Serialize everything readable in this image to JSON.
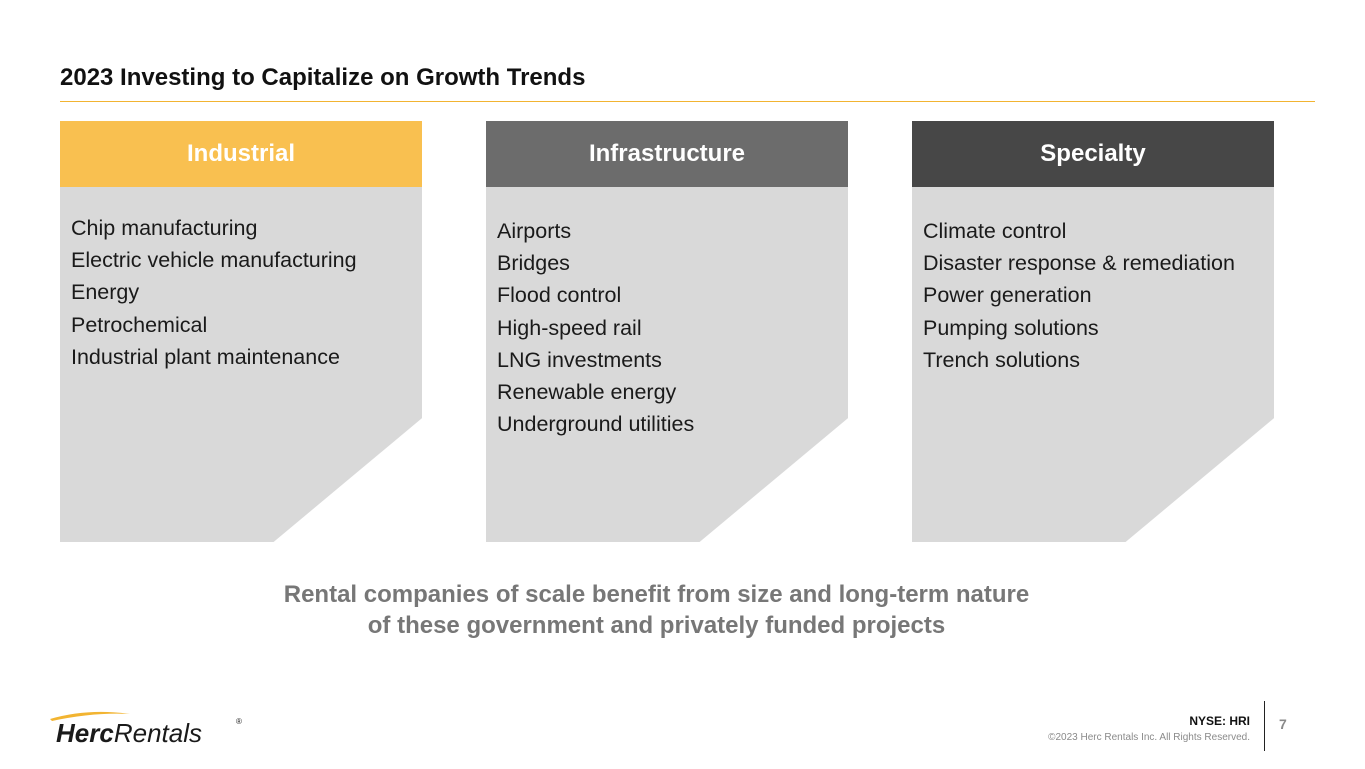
{
  "slide": {
    "title": "2023 Investing to Capitalize on Growth Trends",
    "accent_color": "#f2b431"
  },
  "columns": [
    {
      "heading": "Industrial",
      "header_color": "#f9c050",
      "items": [
        "Chip manufacturing",
        "Electric vehicle manufacturing",
        "Energy",
        "Petrochemical",
        "Industrial plant maintenance"
      ]
    },
    {
      "heading": "Infrastructure",
      "header_color": "#6c6c6c",
      "items": [
        "Airports",
        "Bridges",
        "Flood control",
        "High-speed rail",
        "LNG investments",
        "Renewable energy",
        "Underground utilities"
      ]
    },
    {
      "heading": "Specialty",
      "header_color": "#474747",
      "items": [
        "Climate control",
        "Disaster response & remediation",
        "Power generation",
        "Pumping solutions",
        "Trench solutions"
      ]
    }
  ],
  "tagline": {
    "line1": "Rental companies of scale benefit from size and long-term nature",
    "line2": "of these government and privately funded projects"
  },
  "footer": {
    "logo_bold": "Herc",
    "logo_light": "Rentals",
    "logo_mark": "®",
    "ticker": "NYSE: HRI",
    "copyright": "©2023 Herc Rentals Inc.  All Rights Reserved.",
    "page_number": "7"
  }
}
